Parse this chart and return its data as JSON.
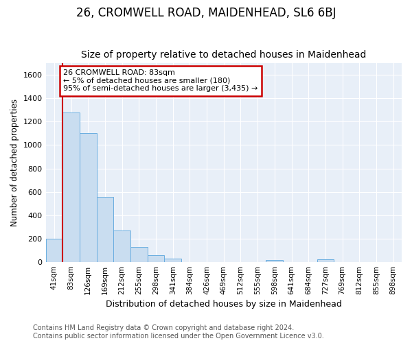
{
  "title": "26, CROMWELL ROAD, MAIDENHEAD, SL6 6BJ",
  "subtitle": "Size of property relative to detached houses in Maidenhead",
  "xlabel": "Distribution of detached houses by size in Maidenhead",
  "ylabel": "Number of detached properties",
  "footer_line1": "Contains HM Land Registry data © Crown copyright and database right 2024.",
  "footer_line2": "Contains public sector information licensed under the Open Government Licence v3.0.",
  "bar_labels": [
    "41sqm",
    "83sqm",
    "126sqm",
    "169sqm",
    "212sqm",
    "255sqm",
    "298sqm",
    "341sqm",
    "384sqm",
    "426sqm",
    "469sqm",
    "512sqm",
    "555sqm",
    "598sqm",
    "641sqm",
    "684sqm",
    "727sqm",
    "769sqm",
    "812sqm",
    "855sqm",
    "898sqm"
  ],
  "bar_values": [
    200,
    1280,
    1100,
    555,
    270,
    125,
    58,
    30,
    0,
    0,
    0,
    0,
    0,
    15,
    0,
    0,
    20,
    0,
    0,
    0,
    0
  ],
  "bar_color": "#c9ddf0",
  "bar_edge_color": "#6aaee0",
  "annotation_box_text": "26 CROMWELL ROAD: 83sqm\n← 5% of detached houses are smaller (180)\n95% of semi-detached houses are larger (3,435) →",
  "annotation_box_facecolor": "#ffffff",
  "annotation_box_edgecolor": "#cc0000",
  "red_line_color": "#cc0000",
  "ylim": [
    0,
    1700
  ],
  "yticks": [
    0,
    200,
    400,
    600,
    800,
    1000,
    1200,
    1400,
    1600
  ],
  "bg_color": "#ffffff",
  "plot_bg_color": "#e8eff8",
  "grid_color": "#ffffff",
  "title_fontsize": 12,
  "subtitle_fontsize": 10,
  "footer_fontsize": 7
}
